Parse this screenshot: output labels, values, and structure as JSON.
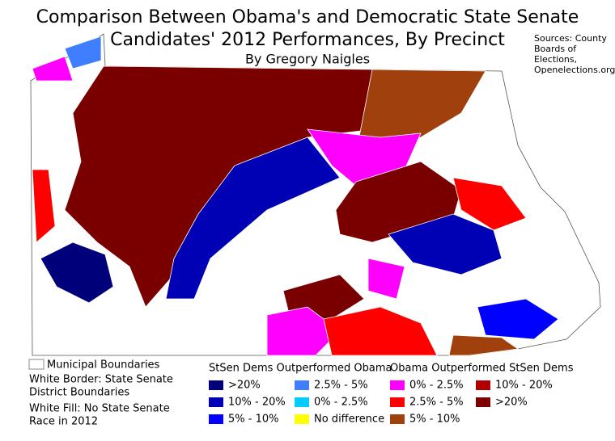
{
  "title_lines": [
    "Comparison Between Obama's and Democratic State Senate",
    "Candidates' 2012 Performances, By Precinct"
  ],
  "subtitle": "By Gregory Naigles",
  "sources_lines": [
    "Sources: County",
    "Boards of",
    "Elections,",
    "Openelections.org"
  ],
  "notes": {
    "box_label": "Municipal Boundaries",
    "lines": [
      "White Border: State Senate",
      "District Boundaries",
      "White Fill: No State Senate",
      "Race in 2012"
    ]
  },
  "legend_groups": [
    {
      "title": "StSen Dems Outperformed Obama",
      "items": [
        {
          "label": ">20%",
          "color": "#00007a"
        },
        {
          "label": "10% - 20%",
          "color": "#0000b4"
        },
        {
          "label": "5% - 10%",
          "color": "#0000ff"
        },
        {
          "label": "2.5% - 5%",
          "color": "#3f7fff"
        },
        {
          "label": "0% - 2.5%",
          "color": "#00ccff"
        },
        {
          "label": "No difference",
          "color": "#ffff00"
        }
      ]
    },
    {
      "title": "Obama Outperformed StSen Dems",
      "items": [
        {
          "label": "0% - 2.5%",
          "color": "#ff00ff"
        },
        {
          "label": "2.5% - 5%",
          "color": "#ff0000"
        },
        {
          "label": "5% - 10%",
          "color": "#a0400c"
        },
        {
          "label": "10% - 20%",
          "color": "#b00000"
        },
        {
          "label": ">20%",
          "color": "#7a0000"
        }
      ]
    }
  ]
}
